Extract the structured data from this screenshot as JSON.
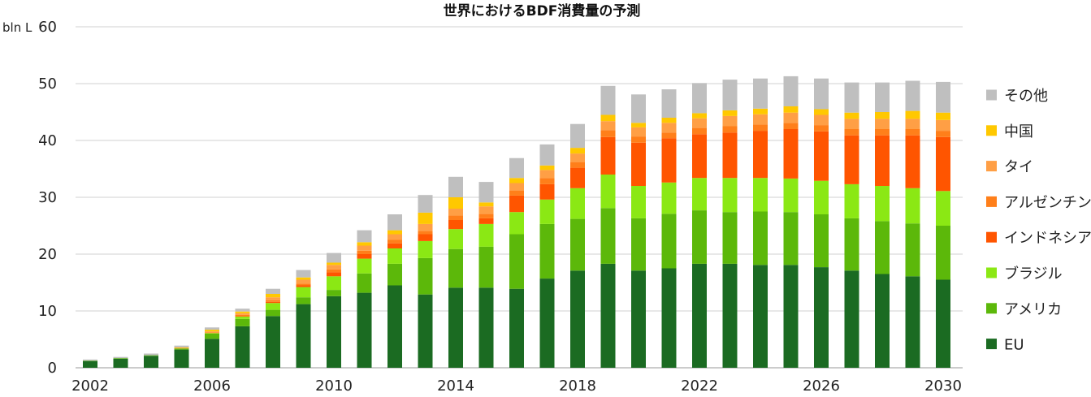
{
  "chart_data": {
    "type": "bar",
    "stacked": true,
    "title": "世界におけるBDF消費量の予測",
    "ylabel": "bln L",
    "xlabel": "",
    "ylim": [
      0,
      60
    ],
    "yticks": [
      "0",
      "10",
      "20",
      "30",
      "40",
      "50",
      "60"
    ],
    "xtick_labels": [
      "2002",
      "2006",
      "2010",
      "2014",
      "2018",
      "2022",
      "2026",
      "2030"
    ],
    "grid": "horizontal",
    "legend_position": "right",
    "categories": [
      "2002",
      "2003",
      "2004",
      "2005",
      "2006",
      "2007",
      "2008",
      "2009",
      "2010",
      "2011",
      "2012",
      "2013",
      "2014",
      "2015",
      "2016",
      "2017",
      "2018",
      "2019",
      "2020",
      "2021",
      "2022",
      "2023",
      "2024",
      "2025",
      "2026",
      "2027",
      "2028",
      "2029",
      "2030"
    ],
    "series": [
      {
        "name": "EU",
        "color": "#1b6b22",
        "values": [
          1.2,
          1.6,
          2.1,
          3.2,
          5.1,
          7.3,
          9.1,
          11.2,
          12.6,
          13.2,
          14.5,
          12.9,
          14.1,
          14.1,
          13.9,
          15.7,
          17.1,
          18.3,
          17.1,
          17.5,
          18.3,
          18.3,
          18.1,
          18.1,
          17.7,
          17.1,
          16.5,
          16.1,
          15.5
        ]
      },
      {
        "name": "アメリカ",
        "color": "#5cb80a",
        "values": [
          0.05,
          0.1,
          0.1,
          0.2,
          0.9,
          1.3,
          1.1,
          1.2,
          1.1,
          3.4,
          3.8,
          6.4,
          6.8,
          7.2,
          9.6,
          9.6,
          9.1,
          9.8,
          9.2,
          9.6,
          9.4,
          9.1,
          9.4,
          9.3,
          9.3,
          9.2,
          9.3,
          9.3,
          9.5
        ]
      },
      {
        "name": "ブラジル",
        "color": "#8be814",
        "values": [
          0.0,
          0.0,
          0.0,
          0.0,
          0.1,
          0.4,
          1.2,
          1.8,
          2.4,
          2.6,
          2.7,
          3.0,
          3.5,
          4.0,
          3.9,
          4.3,
          5.4,
          5.9,
          5.7,
          5.5,
          5.7,
          6.0,
          5.9,
          5.9,
          5.9,
          6.0,
          6.2,
          6.2,
          6.1
        ]
      },
      {
        "name": "インドネシア",
        "color": "#ff5500",
        "values": [
          0.0,
          0.0,
          0.0,
          0.0,
          0.0,
          0.1,
          0.2,
          0.3,
          0.7,
          0.8,
          0.9,
          1.2,
          1.6,
          1.0,
          2.9,
          2.7,
          3.6,
          6.6,
          7.6,
          7.8,
          7.7,
          8.0,
          8.3,
          8.7,
          8.7,
          8.6,
          8.9,
          9.3,
          9.5
        ]
      },
      {
        "name": "アルゼンチン",
        "color": "#ff7f1a",
        "values": [
          0.0,
          0.0,
          0.0,
          0.0,
          0.1,
          0.2,
          0.3,
          0.3,
          0.5,
          0.6,
          0.6,
          0.6,
          0.8,
          0.8,
          0.9,
          1.1,
          1.0,
          1.2,
          1.1,
          1.0,
          1.1,
          1.1,
          1.1,
          1.1,
          1.1,
          1.1,
          1.1,
          1.1,
          1.1
        ]
      },
      {
        "name": "タイ",
        "color": "#ff9f45",
        "values": [
          0.0,
          0.0,
          0.0,
          0.1,
          0.2,
          0.3,
          0.5,
          0.7,
          0.8,
          0.9,
          1.0,
          1.2,
          1.2,
          1.3,
          1.3,
          1.4,
          1.5,
          1.6,
          1.6,
          1.7,
          1.7,
          1.8,
          1.8,
          1.8,
          1.8,
          1.8,
          1.8,
          1.8,
          1.9
        ]
      },
      {
        "name": "中国",
        "color": "#ffc800",
        "values": [
          0.0,
          0.0,
          0.0,
          0.1,
          0.3,
          0.3,
          0.6,
          0.4,
          0.4,
          0.6,
          0.7,
          2.0,
          2.0,
          0.7,
          0.9,
          0.8,
          1.0,
          1.1,
          0.8,
          0.9,
          0.9,
          1.0,
          1.0,
          1.1,
          1.0,
          1.1,
          1.2,
          1.4,
          1.3
        ]
      },
      {
        "name": "その他",
        "color": "#bfbfbf",
        "values": [
          0.2,
          0.2,
          0.3,
          0.3,
          0.4,
          0.5,
          0.9,
          1.3,
          1.7,
          2.1,
          2.8,
          3.1,
          3.6,
          3.6,
          3.5,
          3.7,
          4.2,
          5.1,
          5.0,
          5.0,
          5.3,
          5.4,
          5.3,
          5.3,
          5.4,
          5.3,
          5.2,
          5.3,
          5.4
        ]
      }
    ]
  }
}
